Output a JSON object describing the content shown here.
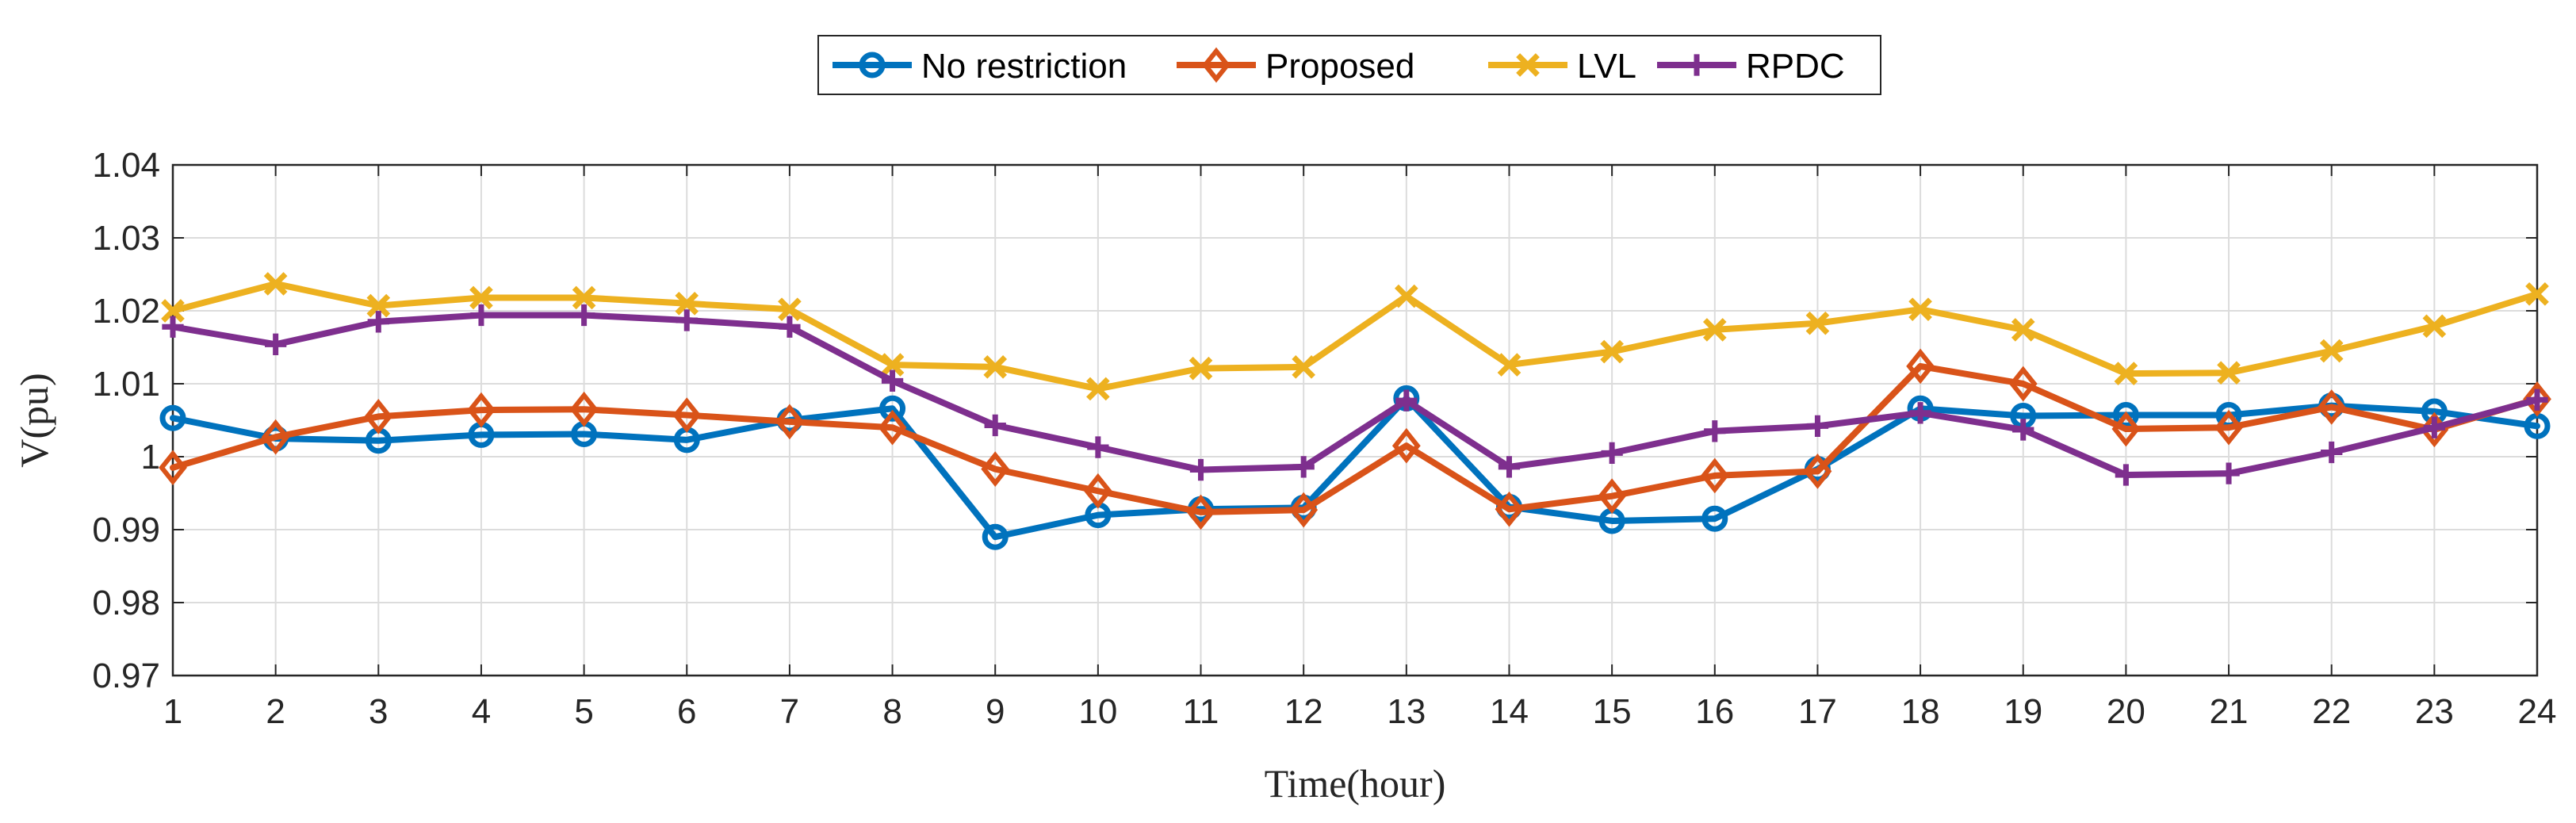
{
  "chart_data": {
    "type": "line",
    "title": "",
    "xlabel": "Time(hour)",
    "ylabel": "V(pu)",
    "x": [
      1,
      2,
      3,
      4,
      5,
      6,
      7,
      8,
      9,
      10,
      11,
      12,
      13,
      14,
      15,
      16,
      17,
      18,
      19,
      20,
      21,
      22,
      23,
      24
    ],
    "xticks": [
      "1",
      "2",
      "3",
      "4",
      "5",
      "6",
      "7",
      "8",
      "9",
      "10",
      "11",
      "12",
      "13",
      "14",
      "15",
      "16",
      "17",
      "18",
      "19",
      "20",
      "21",
      "22",
      "23",
      "24"
    ],
    "yticks": [
      "0.97",
      "0.98",
      "0.99",
      "1",
      "1.01",
      "1.02",
      "1.03",
      "1.04"
    ],
    "xlim": [
      1,
      24
    ],
    "ylim": [
      0.97,
      1.04
    ],
    "grid": true,
    "legend_position": "top-center",
    "series": [
      {
        "name": "No restriction",
        "color": "#0072BD",
        "marker": "circle",
        "values": [
          1.0053,
          1.0025,
          1.0022,
          1.003,
          1.0031,
          1.0023,
          1.005,
          1.0066,
          0.989,
          0.992,
          0.9928,
          0.993,
          1.008,
          0.9931,
          0.9912,
          0.9915,
          0.9983,
          1.0066,
          1.0056,
          1.0057,
          1.0057,
          1.007,
          1.0062,
          1.0042
        ]
      },
      {
        "name": "Proposed",
        "color": "#D95319",
        "marker": "diamond",
        "values": [
          0.9985,
          1.0027,
          1.0055,
          1.0064,
          1.0065,
          1.0057,
          1.0048,
          1.004,
          0.9983,
          0.9953,
          0.9924,
          0.9927,
          1.0015,
          0.9928,
          0.9946,
          0.9974,
          0.998,
          1.0124,
          1.01,
          1.0038,
          1.004,
          1.0068,
          1.0037,
          1.0079
        ]
      },
      {
        "name": "LVL",
        "color": "#EDB120",
        "marker": "x",
        "values": [
          1.02,
          1.0237,
          1.0207,
          1.0218,
          1.0218,
          1.021,
          1.0202,
          1.0126,
          1.0123,
          1.0093,
          1.0121,
          1.0123,
          1.022,
          1.0126,
          1.0144,
          1.0174,
          1.0183,
          1.0202,
          1.0174,
          1.0114,
          1.0115,
          1.0145,
          1.0179,
          1.0223
        ]
      },
      {
        "name": "RPDC",
        "color": "#7E2F8E",
        "marker": "plus",
        "values": [
          1.0178,
          1.0154,
          1.0185,
          1.0194,
          1.0194,
          1.0187,
          1.0178,
          1.0104,
          1.0043,
          1.0013,
          0.9982,
          0.9986,
          1.0077,
          0.9986,
          1.0005,
          1.0035,
          1.0042,
          1.006,
          1.0037,
          0.9975,
          0.9977,
          1.0006,
          1.004,
          1.0078
        ]
      }
    ]
  }
}
